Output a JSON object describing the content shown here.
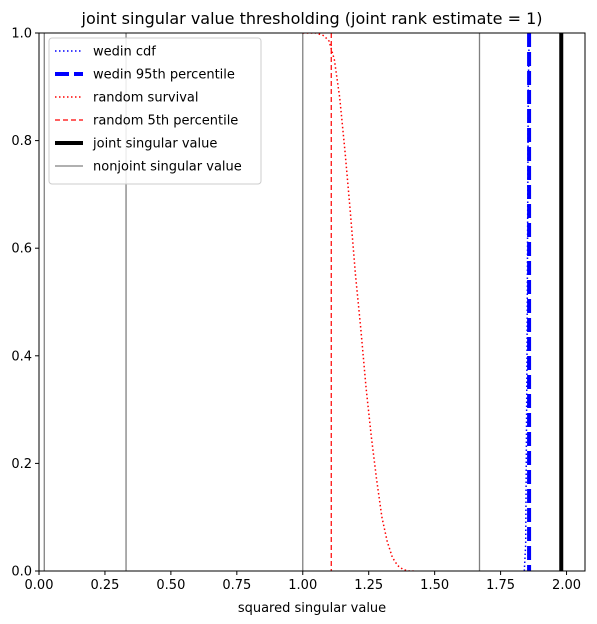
{
  "chart_data": {
    "type": "line",
    "title": "joint singular value thresholding (joint rank estimate = 1)",
    "xlabel": "squared singular value",
    "ylabel": "",
    "xlim": [
      0.0,
      2.07
    ],
    "ylim": [
      0.0,
      1.0
    ],
    "xticks": [
      0.0,
      0.25,
      0.5,
      0.75,
      1.0,
      1.25,
      1.5,
      1.75,
      2.0
    ],
    "xtick_labels": [
      "0.00",
      "0.25",
      "0.50",
      "0.75",
      "1.00",
      "1.25",
      "1.50",
      "1.75",
      "2.00"
    ],
    "yticks": [
      0.0,
      0.2,
      0.4,
      0.6,
      0.8,
      1.0
    ],
    "ytick_labels": [
      "0.0",
      "0.2",
      "0.4",
      "0.6",
      "0.8",
      "1.0"
    ],
    "grid": false,
    "legend_position": "upper-left",
    "series": [
      {
        "name": "wedin cdf",
        "kind": "curve",
        "color": "#0000ff",
        "style": "dotted",
        "x": [
          1.84,
          1.845,
          1.85,
          1.855,
          1.858,
          1.862
        ],
        "y": [
          0.0,
          0.05,
          0.4,
          0.9,
          0.99,
          1.0
        ]
      },
      {
        "name": "wedin 95th percentile",
        "kind": "vline",
        "color": "#0000ff",
        "style": "dashed-thick",
        "x": 1.858
      },
      {
        "name": "random survival",
        "kind": "curve",
        "color": "#ff0000",
        "style": "dotted",
        "x": [
          1.0,
          1.05,
          1.08,
          1.1,
          1.12,
          1.14,
          1.16,
          1.18,
          1.2,
          1.22,
          1.24,
          1.26,
          1.28,
          1.3,
          1.32,
          1.34,
          1.36,
          1.38,
          1.4,
          1.42
        ],
        "y": [
          1.0,
          1.0,
          0.995,
          0.985,
          0.95,
          0.88,
          0.78,
          0.67,
          0.55,
          0.45,
          0.34,
          0.25,
          0.17,
          0.1,
          0.055,
          0.025,
          0.01,
          0.003,
          0.0,
          0.0
        ]
      },
      {
        "name": "random 5th percentile",
        "kind": "vline",
        "color": "#ff0000",
        "style": "dashed-thin",
        "x": 1.108
      },
      {
        "name": "joint singular value",
        "kind": "vlines",
        "color": "#000000",
        "style": "solid-thick",
        "x": [
          1.98
        ]
      },
      {
        "name": "nonjoint singular value",
        "kind": "vlines",
        "color": "#808080",
        "style": "solid-thin",
        "x": [
          0.02,
          0.33,
          1.0,
          1.67
        ]
      }
    ]
  }
}
